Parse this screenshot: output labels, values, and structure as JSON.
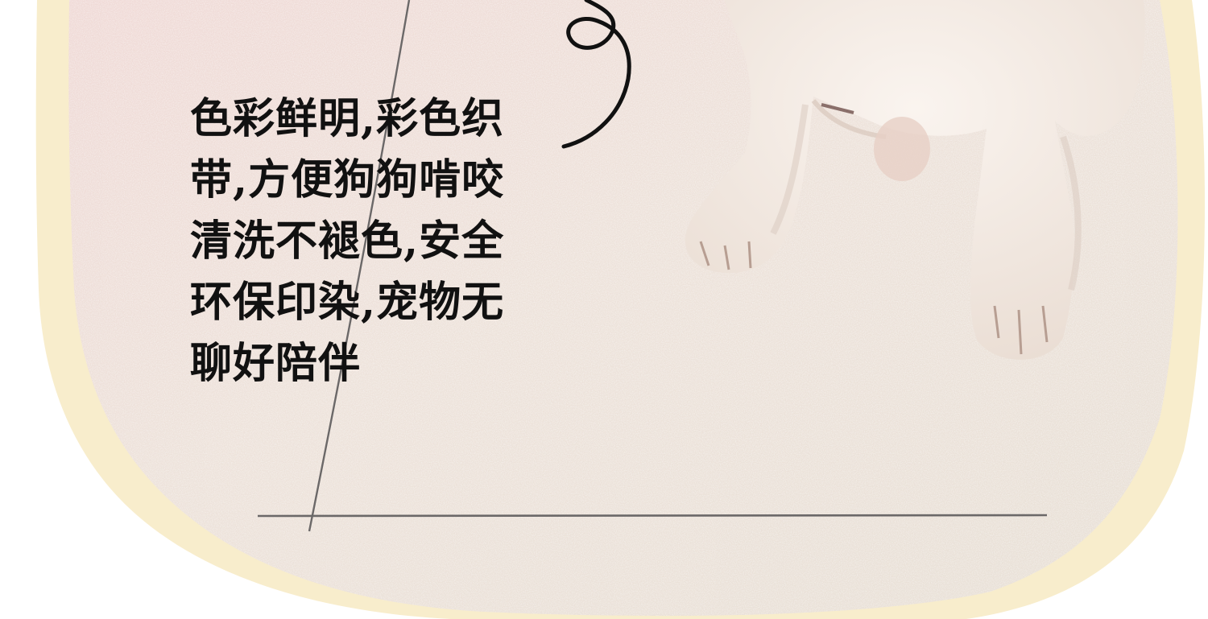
{
  "caption": {
    "text": "色彩鲜明,彩色织\n带,方便狗狗啃咬\n清洗不褪色,安全\n环保印染,宠物无\n聊好陪伴"
  },
  "colors": {
    "frame": "#F8EDCC",
    "floor": "#ECE3DA",
    "floor_warm": "#F0D9D6",
    "grout_line": "#6B6868",
    "dog_fur": "#F4ECE6",
    "text": "#111111"
  }
}
